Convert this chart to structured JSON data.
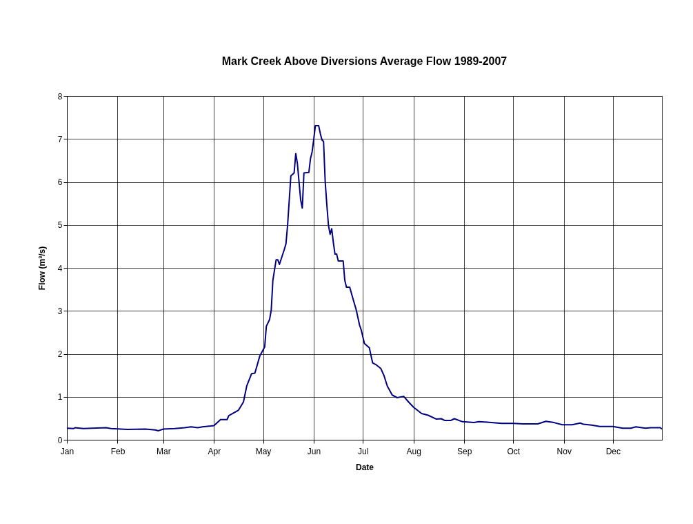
{
  "chart_data": {
    "type": "line",
    "title": "Mark Creek Above Diversions Average Flow 1989-2007",
    "xlabel": "Date",
    "ylabel": "Flow (m³/s)",
    "x": [
      "--01-01",
      "--01-05",
      "--01-06",
      "--01-11",
      "--01-25",
      "--01-28",
      "--02-07",
      "--02-18",
      "--02-24",
      "--02-26",
      "--03-01",
      "--03-08",
      "--03-14",
      "--03-18",
      "--03-22",
      "--03-25",
      "--03-30",
      "--04-01",
      "--04-05",
      "--04-09",
      "--04-10",
      "--04-16",
      "--04-19",
      "--04-21",
      "--04-24",
      "--04-26",
      "--04-29",
      "--05-02",
      "--05-03",
      "--05-05",
      "--05-06",
      "--05-07",
      "--05-09",
      "--05-10",
      "--05-11",
      "--05-14",
      "--05-15",
      "--05-16",
      "--05-18",
      "--05-20",
      "--05-21",
      "--05-22",
      "--05-23",
      "--05-24",
      "--05-25",
      "--05-26",
      "--05-29",
      "--05-30",
      "--05-31",
      "--06-01",
      "--06-02",
      "--06-04",
      "--06-05",
      "--06-06",
      "--06-07",
      "--06-08",
      "--06-09",
      "--06-10",
      "--06-11",
      "--06-12",
      "--06-13",
      "--06-14",
      "--06-15",
      "--06-16",
      "--06-19",
      "--06-20",
      "--06-21",
      "--06-23",
      "--06-25",
      "--06-27",
      "--06-29",
      "--06-30",
      "--07-02",
      "--07-05",
      "--07-07",
      "--07-09",
      "--07-12",
      "--07-14",
      "--07-16",
      "--07-19",
      "--07-22",
      "--07-26",
      "--07-29",
      "--08-01",
      "--08-06",
      "--08-10",
      "--08-15",
      "--08-18",
      "--08-20",
      "--08-24",
      "--08-26",
      "--08-31",
      "--09-07",
      "--09-10",
      "--09-15",
      "--09-24",
      "--10-01",
      "--10-07",
      "--10-16",
      "--10-21",
      "--10-26",
      "--10-31",
      "--11-06",
      "--11-11",
      "--11-13",
      "--11-18",
      "--11-23",
      "--12-01",
      "--12-07",
      "--12-12",
      "--12-15",
      "--12-21",
      "--12-24",
      "--12-30",
      "--12-31"
    ],
    "series": [
      {
        "color": "#000080",
        "values": [
          0.27,
          0.26,
          0.28,
          0.26,
          0.28,
          0.26,
          0.24,
          0.25,
          0.23,
          0.21,
          0.25,
          0.26,
          0.28,
          0.3,
          0.28,
          0.3,
          0.32,
          0.33,
          0.47,
          0.47,
          0.56,
          0.69,
          0.88,
          1.25,
          1.54,
          1.55,
          1.95,
          2.16,
          2.64,
          2.8,
          3.02,
          3.71,
          4.19,
          4.19,
          4.08,
          4.43,
          4.56,
          4.99,
          6.14,
          6.21,
          6.66,
          6.43,
          6.0,
          5.58,
          5.39,
          6.21,
          6.22,
          6.54,
          6.7,
          6.99,
          7.31,
          7.31,
          7.13,
          6.98,
          6.94,
          6.01,
          5.47,
          4.99,
          4.78,
          4.91,
          4.59,
          4.32,
          4.32,
          4.16,
          4.16,
          3.71,
          3.55,
          3.55,
          3.28,
          3.02,
          2.67,
          2.56,
          2.24,
          2.14,
          1.79,
          1.75,
          1.66,
          1.49,
          1.25,
          1.04,
          0.98,
          1.01,
          0.88,
          0.76,
          0.61,
          0.57,
          0.48,
          0.49,
          0.45,
          0.45,
          0.49,
          0.42,
          0.4,
          0.42,
          0.41,
          0.38,
          0.38,
          0.37,
          0.37,
          0.43,
          0.4,
          0.35,
          0.35,
          0.39,
          0.36,
          0.34,
          0.31,
          0.31,
          0.27,
          0.27,
          0.3,
          0.27,
          0.28,
          0.28,
          0.25
        ]
      }
    ],
    "xlim": [
      "--01-01",
      "--12-31"
    ],
    "xticks": [
      {
        "value": "--01-01",
        "label": "Jan"
      },
      {
        "value": "--02-01",
        "label": "Feb"
      },
      {
        "value": "--03-01",
        "label": "Mar"
      },
      {
        "value": "--04-01",
        "label": "Apr"
      },
      {
        "value": "--05-01",
        "label": "May"
      },
      {
        "value": "--06-01",
        "label": "Jun"
      },
      {
        "value": "--07-01",
        "label": "Jul"
      },
      {
        "value": "--08-01",
        "label": "Aug"
      },
      {
        "value": "--09-01",
        "label": "Sep"
      },
      {
        "value": "--10-01",
        "label": "Oct"
      },
      {
        "value": "--11-01",
        "label": "Nov"
      },
      {
        "value": "--12-01",
        "label": "Dec"
      }
    ],
    "ylim": [
      0,
      8
    ],
    "yticks": [
      0,
      1,
      2,
      3,
      4,
      5,
      6,
      7,
      8
    ],
    "grid": true,
    "marker": "none",
    "line_style": "solid"
  }
}
